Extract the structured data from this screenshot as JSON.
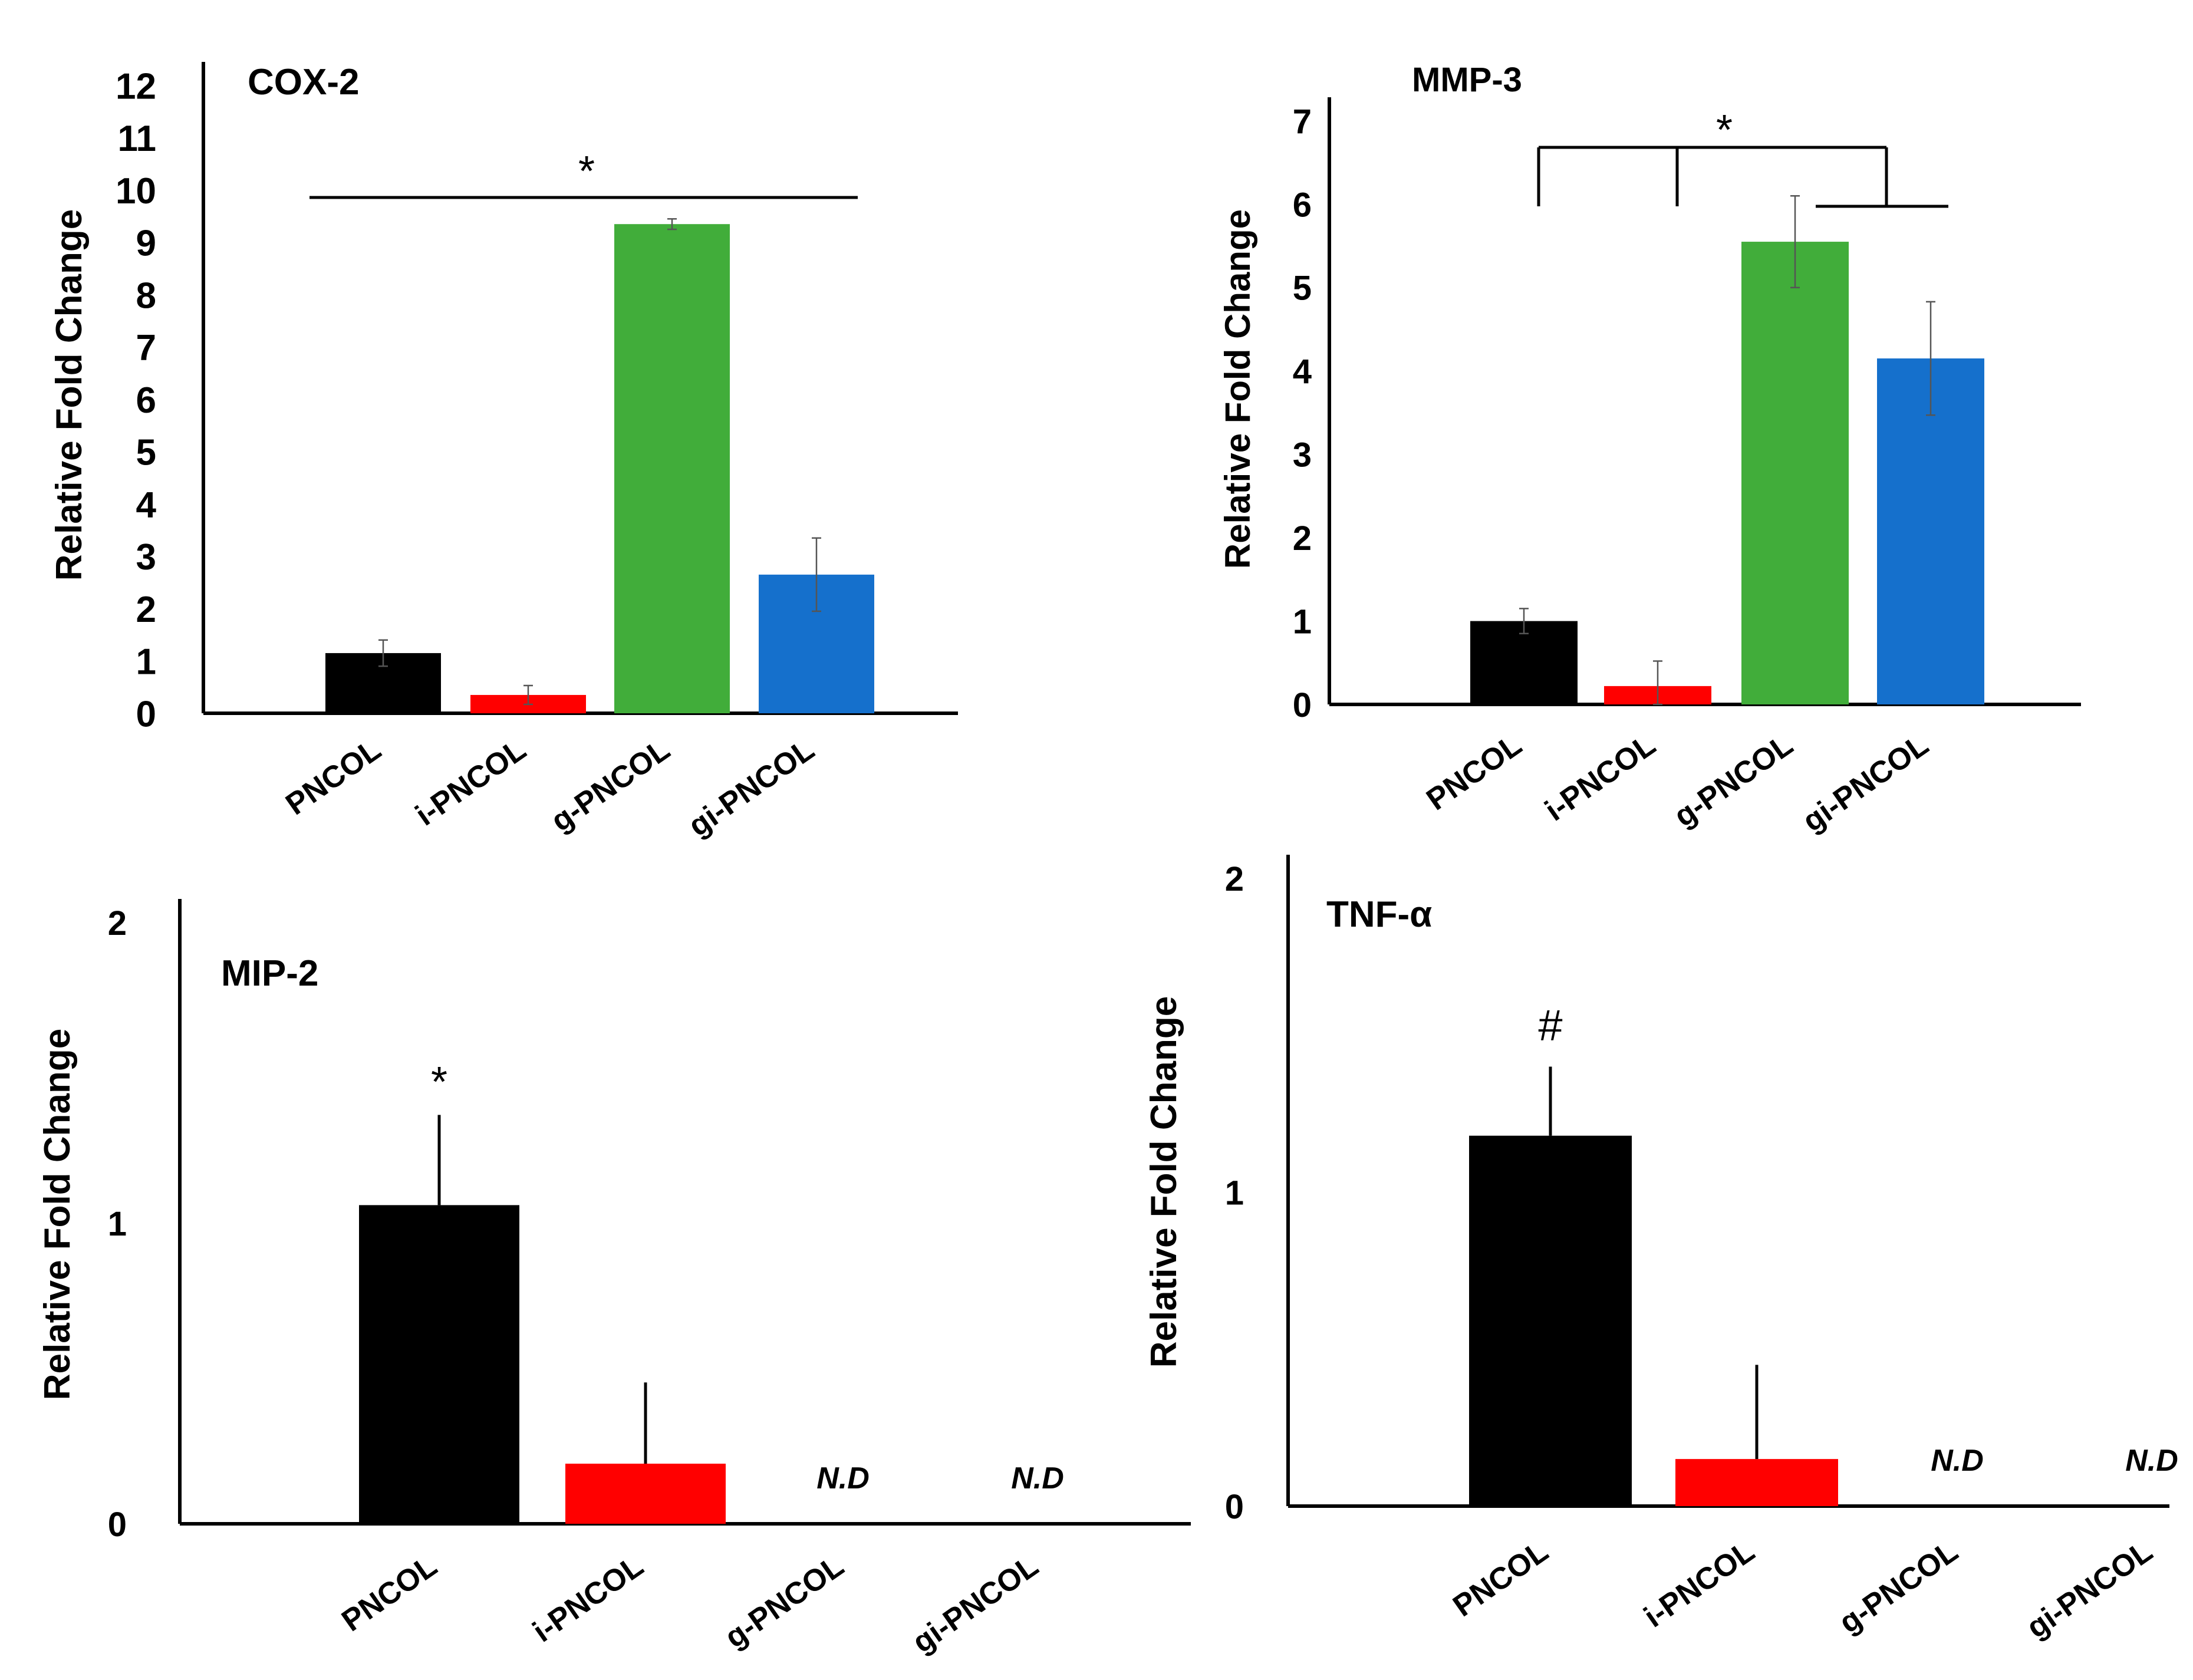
{
  "colors": {
    "PNCOL": "#000000",
    "i-PNCOL": "#ff0000",
    "g-PNCOL": "#41ad3a",
    "gi-PNCOL": "#1570cc",
    "axis": "#000000",
    "error_bar": "#555555"
  },
  "chart_data": [
    {
      "type": "bar",
      "title": "COX-2",
      "ylabel": "Relative  Fold Change",
      "xlabel": "",
      "categories": [
        "PNCOL",
        "i-PNCOL",
        "g-PNCOL",
        "gi-PNCOL"
      ],
      "values": [
        1.15,
        0.35,
        9.35,
        2.65
      ],
      "errors": [
        0.25,
        0.18,
        0.1,
        0.7
      ],
      "ylim": [
        0,
        12
      ],
      "yticks": [
        "0",
        "1",
        "2",
        "3",
        "4",
        "5",
        "6",
        "7",
        "8",
        "9",
        "10",
        "11",
        "12"
      ],
      "not_detected": [
        false,
        false,
        false,
        false
      ],
      "nd_label": "N.D",
      "significance": "*"
    },
    {
      "type": "bar",
      "title": "MMP-3",
      "ylabel": "Relative  Fold Change",
      "xlabel": "",
      "categories": [
        "PNCOL",
        "i-PNCOL",
        "g-PNCOL",
        "gi-PNCOL"
      ],
      "values": [
        1.0,
        0.22,
        5.55,
        4.15
      ],
      "errors": [
        0.15,
        0.3,
        0.55,
        0.68
      ],
      "ylim": [
        0,
        7
      ],
      "yticks": [
        "0",
        "1",
        "2",
        "3",
        "4",
        "5",
        "6",
        "7"
      ],
      "not_detected": [
        false,
        false,
        false,
        false
      ],
      "nd_label": "N.D",
      "significance": "*"
    },
    {
      "type": "bar",
      "title": "MIP-2",
      "ylabel": "Relative  Fold Change",
      "xlabel": "",
      "categories": [
        "PNCOL",
        "i-PNCOL",
        "g-PNCOL",
        "gi-PNCOL"
      ],
      "values": [
        1.06,
        0.2,
        0,
        0
      ],
      "errors": [
        0.3,
        0.27,
        0,
        0
      ],
      "ylim": [
        0,
        2
      ],
      "yticks": [
        "0",
        "1",
        "2"
      ],
      "not_detected": [
        false,
        false,
        true,
        true
      ],
      "nd_label": "N.D",
      "significance": "*"
    },
    {
      "type": "bar",
      "title": "TNF-α",
      "ylabel": "Relative  Fold Change",
      "xlabel": "",
      "categories": [
        "PNCOL",
        "i-PNCOL",
        "g-PNCOL",
        "gi-PNCOL"
      ],
      "values": [
        1.18,
        0.15,
        0,
        0
      ],
      "errors": [
        0.22,
        0.3,
        0,
        0
      ],
      "ylim": [
        0,
        2
      ],
      "yticks": [
        "0",
        "1",
        "2"
      ],
      "not_detected": [
        false,
        false,
        true,
        true
      ],
      "nd_label": "N.D",
      "significance": "#"
    }
  ]
}
